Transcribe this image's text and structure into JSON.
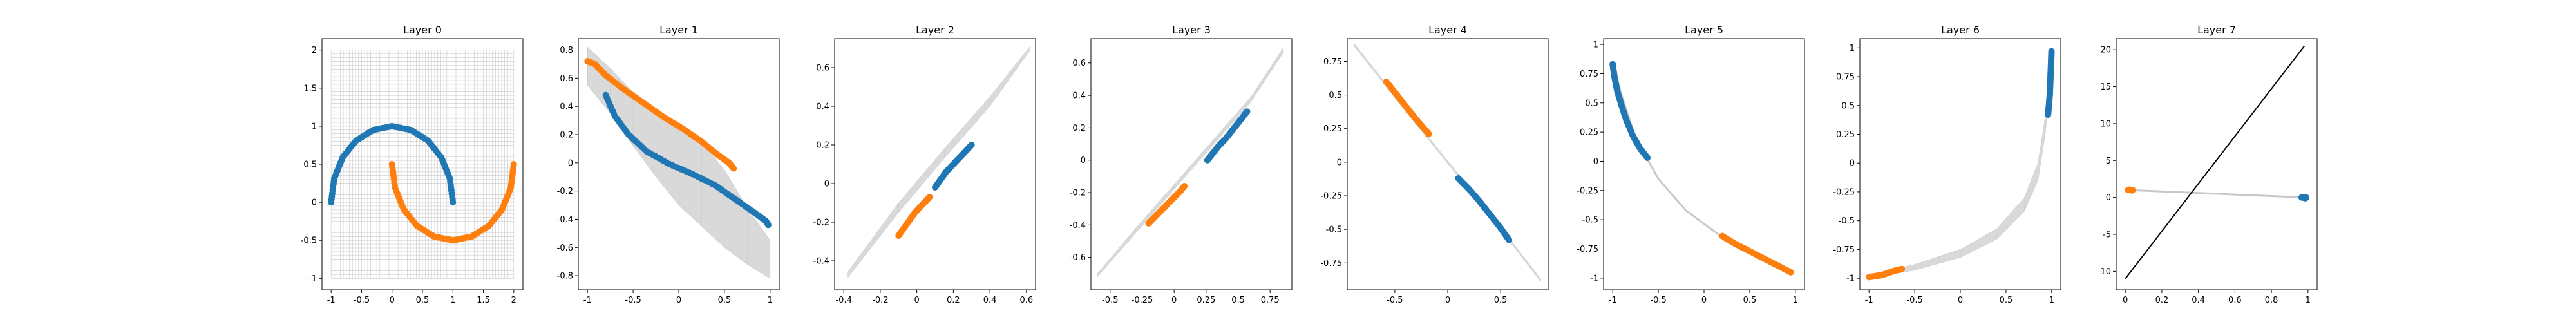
{
  "chart_data": [
    {
      "type": "scatter",
      "title": "Layer 0",
      "xlim": [
        -1.15,
        2.15
      ],
      "ylim": [
        -1.15,
        2.15
      ],
      "xticks": [
        -1.0,
        -0.5,
        0.0,
        0.5,
        1.0,
        1.5,
        2.0
      ],
      "yticks": [
        -1.0,
        -0.5,
        0.0,
        0.5,
        1.0,
        1.5,
        2.0
      ],
      "grid": {
        "show": true,
        "kind": "mesh",
        "x": [
          -1.0,
          2.0
        ],
        "y": [
          -1.0,
          2.0
        ],
        "color": "#c8c8c8"
      },
      "series": [
        {
          "color": "#1f77b4",
          "points": [
            [
              -1.0,
              0.0
            ],
            [
              -0.95,
              0.31
            ],
            [
              -0.81,
              0.59
            ],
            [
              -0.59,
              0.81
            ],
            [
              -0.31,
              0.95
            ],
            [
              0.0,
              1.0
            ],
            [
              0.31,
              0.95
            ],
            [
              0.59,
              0.81
            ],
            [
              0.81,
              0.59
            ],
            [
              0.95,
              0.31
            ],
            [
              1.0,
              0.0
            ]
          ]
        },
        {
          "color": "#ff7f0e",
          "points": [
            [
              0.0,
              0.5
            ],
            [
              0.05,
              0.19
            ],
            [
              0.19,
              -0.09
            ],
            [
              0.41,
              -0.31
            ],
            [
              0.69,
              -0.45
            ],
            [
              1.0,
              -0.5
            ],
            [
              1.31,
              -0.45
            ],
            [
              1.59,
              -0.31
            ],
            [
              1.81,
              -0.09
            ],
            [
              1.95,
              0.19
            ],
            [
              2.0,
              0.5
            ]
          ]
        }
      ]
    },
    {
      "type": "scatter",
      "title": "Layer 1",
      "xlim": [
        -1.1,
        1.1
      ],
      "ylim": [
        -0.9,
        0.88
      ],
      "xticks": [
        -1.0,
        -0.5,
        0.0,
        0.5,
        1.0
      ],
      "yticks": [
        -0.8,
        -0.6,
        -0.4,
        -0.2,
        0.0,
        0.2,
        0.4,
        0.6,
        0.8
      ],
      "grid": {
        "show": true,
        "kind": "band",
        "color": "#d9d9d9",
        "upper": [
          [
            -1.0,
            0.82
          ],
          [
            -0.75,
            0.67
          ],
          [
            -0.5,
            0.5
          ],
          [
            -0.25,
            0.38
          ],
          [
            0.0,
            0.28
          ],
          [
            0.25,
            0.15
          ],
          [
            0.5,
            -0.05
          ],
          [
            0.75,
            -0.32
          ],
          [
            1.0,
            -0.55
          ]
        ],
        "lower": [
          [
            -1.0,
            0.55
          ],
          [
            -0.75,
            0.35
          ],
          [
            -0.5,
            0.12
          ],
          [
            -0.25,
            -0.1
          ],
          [
            0.0,
            -0.3
          ],
          [
            0.25,
            -0.45
          ],
          [
            0.5,
            -0.6
          ],
          [
            0.75,
            -0.72
          ],
          [
            1.0,
            -0.82
          ]
        ]
      },
      "series": [
        {
          "color": "#1f77b4",
          "points": [
            [
              -0.8,
              0.48
            ],
            [
              -0.7,
              0.33
            ],
            [
              -0.55,
              0.2
            ],
            [
              -0.35,
              0.08
            ],
            [
              -0.1,
              -0.01
            ],
            [
              0.15,
              -0.08
            ],
            [
              0.4,
              -0.16
            ],
            [
              0.6,
              -0.25
            ],
            [
              0.8,
              -0.34
            ],
            [
              0.95,
              -0.41
            ],
            [
              0.98,
              -0.44
            ]
          ]
        },
        {
          "color": "#ff7f0e",
          "points": [
            [
              -1.0,
              0.72
            ],
            [
              -0.92,
              0.7
            ],
            [
              -0.8,
              0.62
            ],
            [
              -0.62,
              0.53
            ],
            [
              -0.4,
              0.43
            ],
            [
              -0.18,
              0.33
            ],
            [
              0.05,
              0.24
            ],
            [
              0.25,
              0.15
            ],
            [
              0.42,
              0.06
            ],
            [
              0.55,
              0.0
            ],
            [
              0.6,
              -0.04
            ]
          ]
        }
      ]
    },
    {
      "type": "scatter",
      "title": "Layer 2",
      "xlim": [
        -0.45,
        0.65
      ],
      "ylim": [
        -0.55,
        0.75
      ],
      "xticks": [
        -0.4,
        -0.2,
        0.0,
        0.2,
        0.4,
        0.6
      ],
      "yticks": [
        -0.4,
        -0.2,
        0.0,
        0.2,
        0.4,
        0.6
      ],
      "grid": {
        "show": true,
        "kind": "band",
        "color": "#d9d9d9",
        "upper": [
          [
            -0.38,
            -0.46
          ],
          [
            -0.1,
            -0.1
          ],
          [
            0.15,
            0.18
          ],
          [
            0.4,
            0.45
          ],
          [
            0.62,
            0.71
          ]
        ],
        "lower": [
          [
            -0.38,
            -0.49
          ],
          [
            -0.1,
            -0.15
          ],
          [
            0.15,
            0.13
          ],
          [
            0.4,
            0.4
          ],
          [
            0.62,
            0.69
          ]
        ]
      },
      "series": [
        {
          "color": "#1f77b4",
          "points": [
            [
              0.1,
              -0.02
            ],
            [
              0.13,
              0.02
            ],
            [
              0.16,
              0.06
            ],
            [
              0.19,
              0.09
            ],
            [
              0.22,
              0.12
            ],
            [
              0.25,
              0.15
            ],
            [
              0.28,
              0.18
            ],
            [
              0.3,
              0.2
            ]
          ]
        },
        {
          "color": "#ff7f0e",
          "points": [
            [
              -0.1,
              -0.27
            ],
            [
              -0.07,
              -0.23
            ],
            [
              -0.04,
              -0.19
            ],
            [
              -0.01,
              -0.15
            ],
            [
              0.02,
              -0.12
            ],
            [
              0.05,
              -0.09
            ],
            [
              0.07,
              -0.07
            ]
          ]
        }
      ]
    },
    {
      "type": "scatter",
      "title": "Layer 3",
      "xlim": [
        -0.65,
        0.92
      ],
      "ylim": [
        -0.8,
        0.75
      ],
      "xticks": [
        -0.5,
        -0.25,
        0.0,
        0.25,
        0.5,
        0.75
      ],
      "yticks": [
        -0.6,
        -0.4,
        -0.2,
        0.0,
        0.2,
        0.4,
        0.6
      ],
      "grid": {
        "show": true,
        "kind": "band",
        "color": "#d9d9d9",
        "upper": [
          [
            -0.6,
            -0.7
          ],
          [
            -0.3,
            -0.42
          ],
          [
            0.0,
            -0.15
          ],
          [
            0.3,
            0.12
          ],
          [
            0.6,
            0.39
          ],
          [
            0.85,
            0.69
          ]
        ],
        "lower": [
          [
            -0.6,
            -0.72
          ],
          [
            -0.3,
            -0.45
          ],
          [
            0.0,
            -0.18
          ],
          [
            0.3,
            0.09
          ],
          [
            0.6,
            0.36
          ],
          [
            0.85,
            0.66
          ]
        ]
      },
      "series": [
        {
          "color": "#1f77b4",
          "points": [
            [
              0.26,
              0.0
            ],
            [
              0.3,
              0.04
            ],
            [
              0.35,
              0.09
            ],
            [
              0.4,
              0.13
            ],
            [
              0.45,
              0.18
            ],
            [
              0.5,
              0.23
            ],
            [
              0.55,
              0.28
            ],
            [
              0.57,
              0.3
            ]
          ]
        },
        {
          "color": "#ff7f0e",
          "points": [
            [
              -0.2,
              -0.39
            ],
            [
              -0.15,
              -0.35
            ],
            [
              -0.1,
              -0.31
            ],
            [
              -0.05,
              -0.27
            ],
            [
              0.0,
              -0.23
            ],
            [
              0.05,
              -0.19
            ],
            [
              0.08,
              -0.16
            ]
          ]
        }
      ]
    },
    {
      "type": "scatter",
      "title": "Layer 4",
      "xlim": [
        -0.95,
        0.95
      ],
      "ylim": [
        -0.95,
        0.92
      ],
      "xticks": [
        -0.5,
        0.0,
        0.5
      ],
      "yticks": [
        -0.75,
        -0.5,
        -0.25,
        0.0,
        0.25,
        0.5,
        0.75
      ],
      "grid": {
        "show": true,
        "kind": "band",
        "color": "#d9d9d9",
        "upper": [
          [
            -0.88,
            0.88
          ],
          [
            -0.4,
            0.4
          ],
          [
            0.0,
            0.01
          ],
          [
            0.4,
            -0.38
          ],
          [
            0.88,
            -0.87
          ]
        ],
        "lower": [
          [
            -0.88,
            0.86
          ],
          [
            -0.4,
            0.38
          ],
          [
            0.0,
            -0.01
          ],
          [
            0.4,
            -0.4
          ],
          [
            0.88,
            -0.89
          ]
        ]
      },
      "series": [
        {
          "color": "#1f77b4",
          "points": [
            [
              0.1,
              -0.12
            ],
            [
              0.2,
              -0.2
            ],
            [
              0.3,
              -0.29
            ],
            [
              0.4,
              -0.39
            ],
            [
              0.5,
              -0.49
            ],
            [
              0.58,
              -0.58
            ]
          ]
        },
        {
          "color": "#ff7f0e",
          "points": [
            [
              -0.58,
              0.6
            ],
            [
              -0.5,
              0.52
            ],
            [
              -0.4,
              0.42
            ],
            [
              -0.3,
              0.32
            ],
            [
              -0.2,
              0.23
            ],
            [
              -0.18,
              0.21
            ]
          ]
        }
      ]
    },
    {
      "type": "scatter",
      "title": "Layer 5",
      "xlim": [
        -1.1,
        1.1
      ],
      "ylim": [
        -1.1,
        1.05
      ],
      "xticks": [
        -1.0,
        -0.5,
        0.0,
        0.5,
        1.0
      ],
      "yticks": [
        -1.0,
        -0.75,
        -0.5,
        -0.25,
        0.0,
        0.25,
        0.5,
        0.75,
        1.0
      ],
      "grid": {
        "show": true,
        "kind": "curve",
        "color": "#c8c8c8",
        "points": [
          [
            -1.0,
            0.85
          ],
          [
            -0.9,
            0.56
          ],
          [
            -0.75,
            0.2
          ],
          [
            -0.5,
            -0.15
          ],
          [
            -0.2,
            -0.42
          ],
          [
            0.2,
            -0.65
          ],
          [
            0.6,
            -0.82
          ],
          [
            0.95,
            -0.95
          ]
        ]
      },
      "series": [
        {
          "color": "#1f77b4",
          "points": [
            [
              -1.0,
              0.83
            ],
            [
              -0.98,
              0.72
            ],
            [
              -0.95,
              0.6
            ],
            [
              -0.9,
              0.47
            ],
            [
              -0.85,
              0.35
            ],
            [
              -0.78,
              0.22
            ],
            [
              -0.7,
              0.11
            ],
            [
              -0.62,
              0.03
            ]
          ]
        },
        {
          "color": "#ff7f0e",
          "points": [
            [
              0.2,
              -0.64
            ],
            [
              0.35,
              -0.71
            ],
            [
              0.5,
              -0.77
            ],
            [
              0.65,
              -0.83
            ],
            [
              0.8,
              -0.89
            ],
            [
              0.95,
              -0.95
            ]
          ]
        }
      ]
    },
    {
      "type": "scatter",
      "title": "Layer 6",
      "xlim": [
        -1.1,
        1.1
      ],
      "ylim": [
        -1.1,
        1.08
      ],
      "xticks": [
        -1.0,
        -0.5,
        0.0,
        0.5,
        1.0
      ],
      "yticks": [
        -1.0,
        -0.75,
        -0.5,
        -0.25,
        0.0,
        0.25,
        0.5,
        0.75,
        1.0
      ],
      "grid": {
        "show": true,
        "kind": "band",
        "color": "#d9d9d9",
        "upper": [
          [
            -1.0,
            -0.97
          ],
          [
            -0.5,
            -0.88
          ],
          [
            0.0,
            -0.75
          ],
          [
            0.4,
            -0.57
          ],
          [
            0.7,
            -0.3
          ],
          [
            0.85,
            0.0
          ],
          [
            0.93,
            0.4
          ],
          [
            0.98,
            0.85
          ]
        ],
        "lower": [
          [
            -1.0,
            -1.0
          ],
          [
            -0.5,
            -0.93
          ],
          [
            0.0,
            -0.82
          ],
          [
            0.4,
            -0.66
          ],
          [
            0.7,
            -0.42
          ],
          [
            0.85,
            -0.15
          ],
          [
            0.93,
            0.25
          ],
          [
            0.98,
            0.7
          ]
        ]
      },
      "series": [
        {
          "color": "#1f77b4",
          "points": [
            [
              0.96,
              0.42
            ],
            [
              0.97,
              0.5
            ],
            [
              0.98,
              0.6
            ],
            [
              0.985,
              0.7
            ],
            [
              0.99,
              0.8
            ],
            [
              0.995,
              0.9
            ],
            [
              0.998,
              0.97
            ]
          ]
        },
        {
          "color": "#ff7f0e",
          "points": [
            [
              -1.0,
              -0.99
            ],
            [
              -0.92,
              -0.98
            ],
            [
              -0.85,
              -0.97
            ],
            [
              -0.78,
              -0.95
            ],
            [
              -0.7,
              -0.93
            ],
            [
              -0.64,
              -0.92
            ]
          ]
        }
      ]
    },
    {
      "type": "scatter",
      "title": "Layer 7",
      "xlim": [
        -0.05,
        1.05
      ],
      "ylim": [
        -12.5,
        21.5
      ],
      "xticks": [
        0.0,
        0.2,
        0.4,
        0.6,
        0.8,
        1.0
      ],
      "yticks": [
        -10,
        -5,
        0,
        5,
        10,
        15,
        20
      ],
      "grid": {
        "show": true,
        "kind": "segment",
        "color": "#c8c8c8",
        "points": [
          [
            0.02,
            1.0
          ],
          [
            0.98,
            0.0
          ]
        ]
      },
      "boundary": {
        "color": "#000000",
        "points": [
          [
            0.0,
            -11.0
          ],
          [
            0.98,
            20.5
          ]
        ]
      },
      "series": [
        {
          "color": "#1f77b4",
          "points": [
            [
              0.965,
              0.0
            ],
            [
              0.975,
              0.0
            ],
            [
              0.985,
              -0.1
            ],
            [
              0.99,
              0.0
            ]
          ]
        },
        {
          "color": "#ff7f0e",
          "points": [
            [
              0.015,
              1.0
            ],
            [
              0.025,
              1.05
            ],
            [
              0.035,
              0.95
            ],
            [
              0.04,
              1.0
            ]
          ]
        }
      ]
    }
  ]
}
